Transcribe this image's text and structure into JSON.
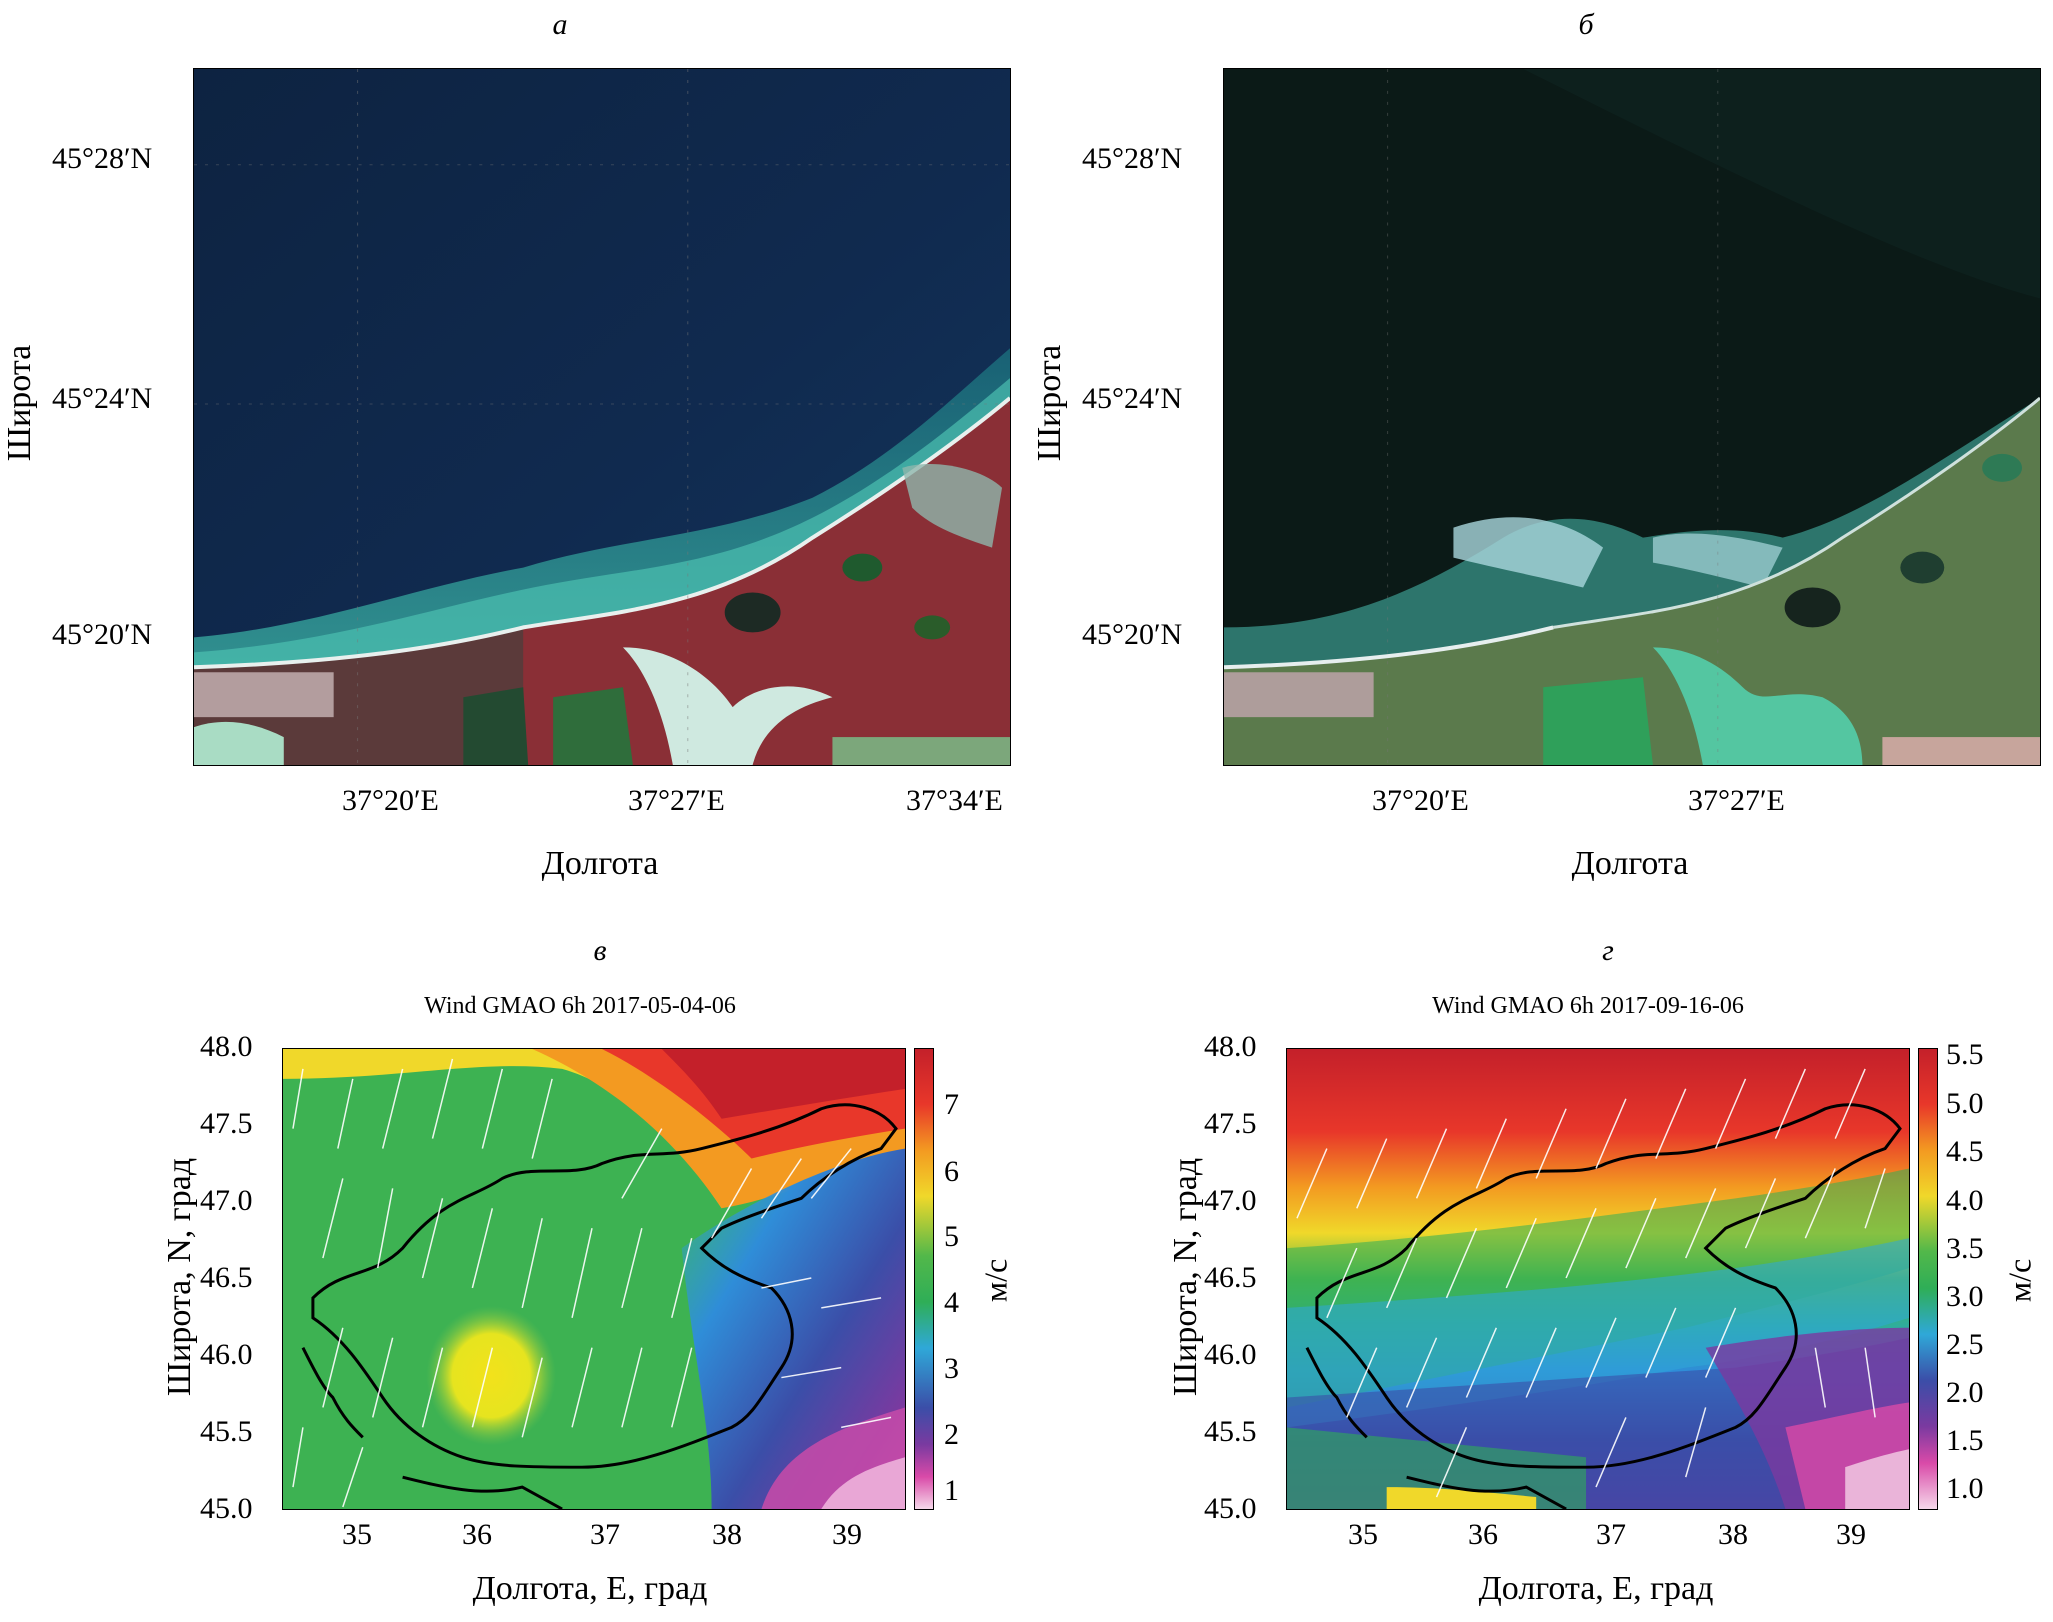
{
  "panels": {
    "a": {
      "letter": "а",
      "y_ticks": [
        "45°28′N",
        "45°24′N",
        "45°20′N"
      ],
      "x_ticks": [
        "37°20′E",
        "37°27′E",
        "37°34′E"
      ],
      "ylabel": "Широта",
      "xlabel": "Долгота"
    },
    "b": {
      "letter": "б",
      "y_ticks": [
        "45°28′N",
        "45°24′N",
        "45°20′N"
      ],
      "x_ticks": [
        "37°20′E",
        "37°27′E"
      ],
      "ylabel": "Широта",
      "xlabel": "Долгота"
    },
    "c": {
      "letter": "в",
      "title": "Wind GMAO 6h 2017-05-04-06",
      "y_ticks": [
        "48.0",
        "47.5",
        "47.0",
        "46.5",
        "46.0",
        "45.5",
        "45.0"
      ],
      "x_ticks": [
        "35",
        "36",
        "37",
        "38",
        "39"
      ],
      "ylabel": "Широта, N, град",
      "xlabel": "Долгота, E, град",
      "colorbar_ticks": [
        "7",
        "6",
        "5",
        "4",
        "3",
        "2",
        "1"
      ],
      "colorbar_unit": "м/с"
    },
    "d": {
      "letter": "г",
      "title": "Wind GMAO 6h 2017-09-16-06",
      "y_ticks": [
        "48.0",
        "47.5",
        "47.0",
        "46.5",
        "46.0",
        "45.5",
        "45.0"
      ],
      "x_ticks": [
        "35",
        "36",
        "37",
        "38",
        "39"
      ],
      "ylabel": "Широта, N, град",
      "xlabel": "Долгота, E, град",
      "colorbar_ticks": [
        "5.5",
        "5.0",
        "4.5",
        "4.0",
        "3.5",
        "3.0",
        "2.5",
        "2.0",
        "1.5",
        "1.0"
      ],
      "colorbar_unit": "м/с"
    }
  }
}
